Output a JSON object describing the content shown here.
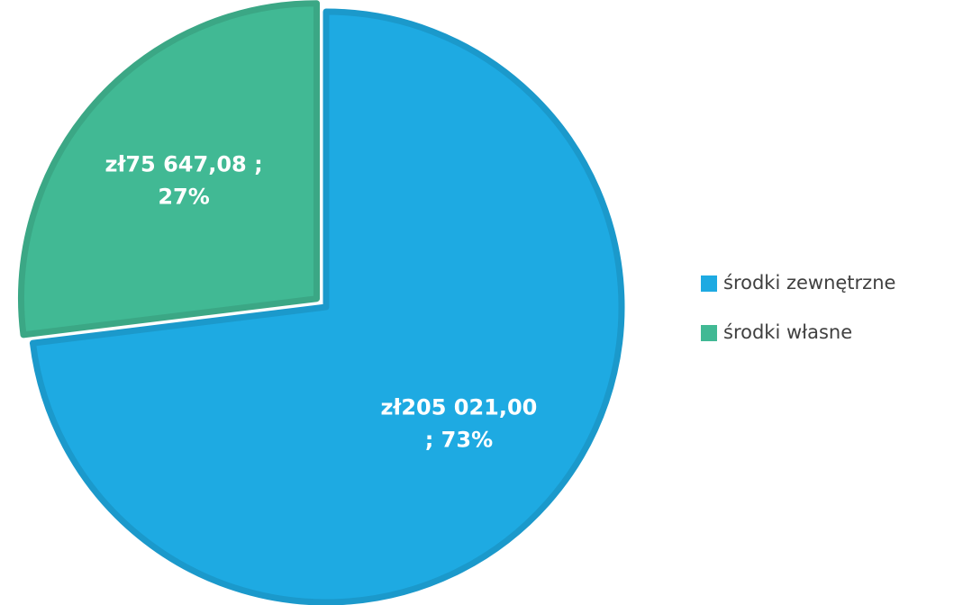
{
  "chart_data": {
    "type": "pie",
    "categories": [
      "środki zewnętrzne",
      "środki własne"
    ],
    "values": [
      205021.0,
      75647.08
    ],
    "value_labels": [
      [
        "zł205 021,00",
        "; 73%"
      ],
      [
        "zł75 647,08 ;",
        "27%"
      ]
    ],
    "colors": [
      "#1eaae2",
      "#41b994"
    ],
    "legend": "right"
  }
}
